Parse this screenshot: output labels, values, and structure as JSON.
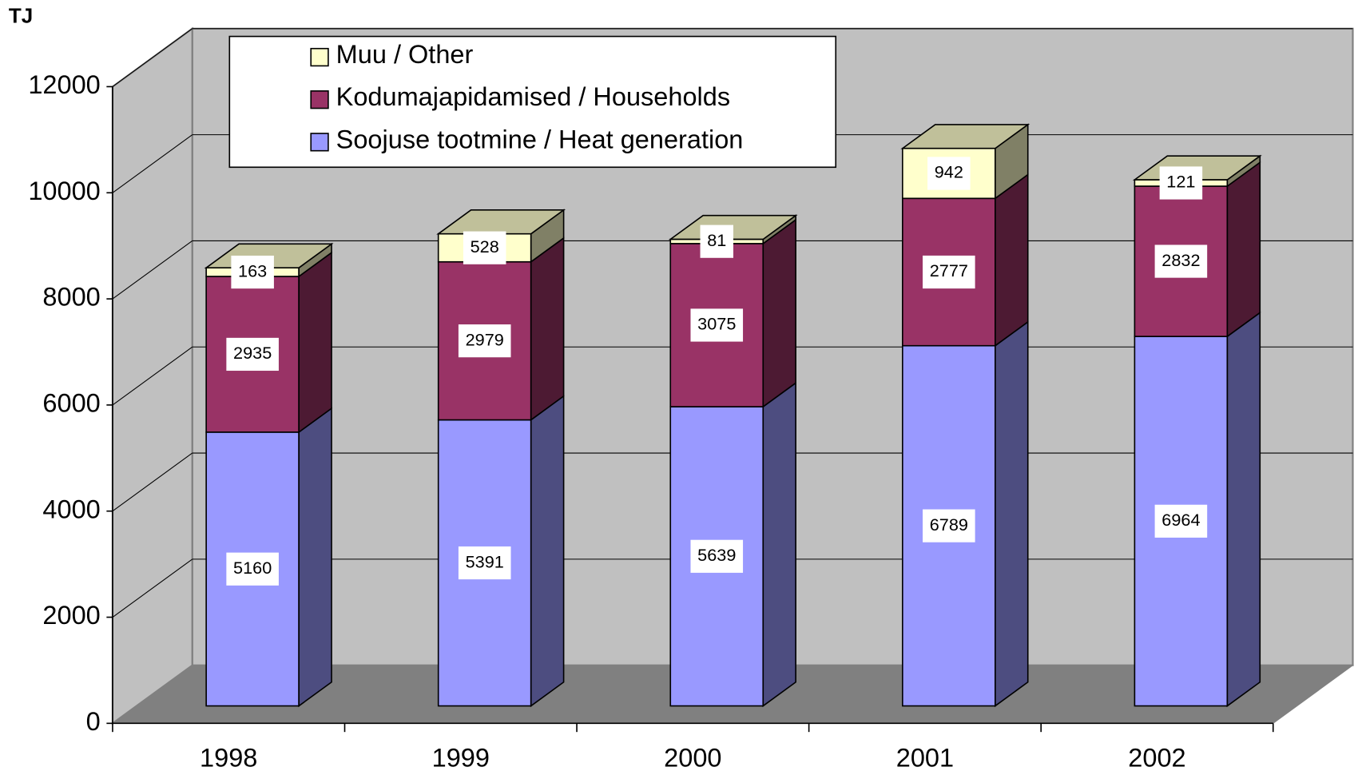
{
  "chart_data": {
    "type": "bar3d_stacked",
    "y_label": "TJ",
    "categories": [
      "1998",
      "1999",
      "2000",
      "2001",
      "2002"
    ],
    "series": [
      {
        "name": "Soojuse tootmine / Heat generation",
        "color": "#9999ff",
        "side_color": "#4d4d80",
        "values": [
          5160,
          5391,
          5639,
          6789,
          6964
        ]
      },
      {
        "name": "Kodumajapidamised / Households",
        "color": "#993366",
        "side_color": "#4d1a33",
        "values": [
          2935,
          2979,
          3075,
          2777,
          2832
        ]
      },
      {
        "name": "Muu / Other",
        "color": "#ffffcc",
        "side_color": "#808066",
        "top_color": "#c0c09a",
        "values": [
          163,
          528,
          81,
          942,
          121
        ]
      }
    ],
    "ylim": [
      0,
      12000
    ],
    "yticks": [
      0,
      2000,
      4000,
      6000,
      8000,
      10000,
      12000
    ],
    "grid": true,
    "legend": "top"
  }
}
